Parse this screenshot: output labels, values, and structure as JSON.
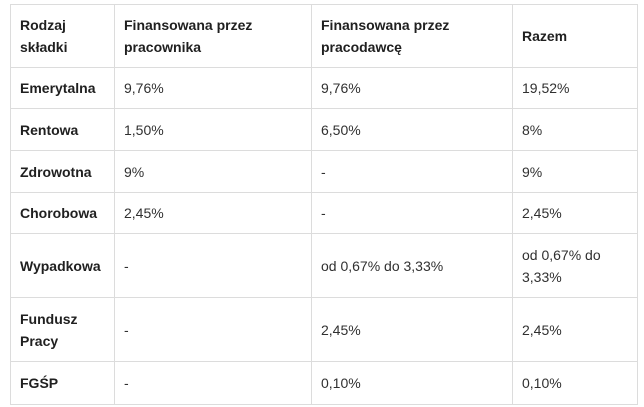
{
  "table": {
    "headers": [
      "Rodzaj składki",
      "Finansowana przez pracownika",
      "Finansowana przez pracodawcę",
      "Razem"
    ],
    "rows": [
      {
        "name": "Emerytalna",
        "employee": "9,76%",
        "employer": "9,76%",
        "total": "19,52%"
      },
      {
        "name": "Rentowa",
        "employee": "1,50%",
        "employer": "6,50%",
        "total": "8%"
      },
      {
        "name": "Zdrowotna",
        "employee": "9%",
        "employer": "-",
        "total": "9%"
      },
      {
        "name": "Chorobowa",
        "employee": "2,45%",
        "employer": "-",
        "total": "2,45%"
      },
      {
        "name": "Wypadkowa",
        "employee": "-",
        "employer": "od 0,67% do 3,33%",
        "total": "od 0,67% do 3,33%"
      },
      {
        "name": "Fundusz Pracy",
        "employee": "-",
        "employer": "2,45%",
        "total": "2,45%"
      },
      {
        "name": "FGŚP",
        "employee": "-",
        "employer": "0,10%",
        "total": "0,10%"
      }
    ]
  }
}
